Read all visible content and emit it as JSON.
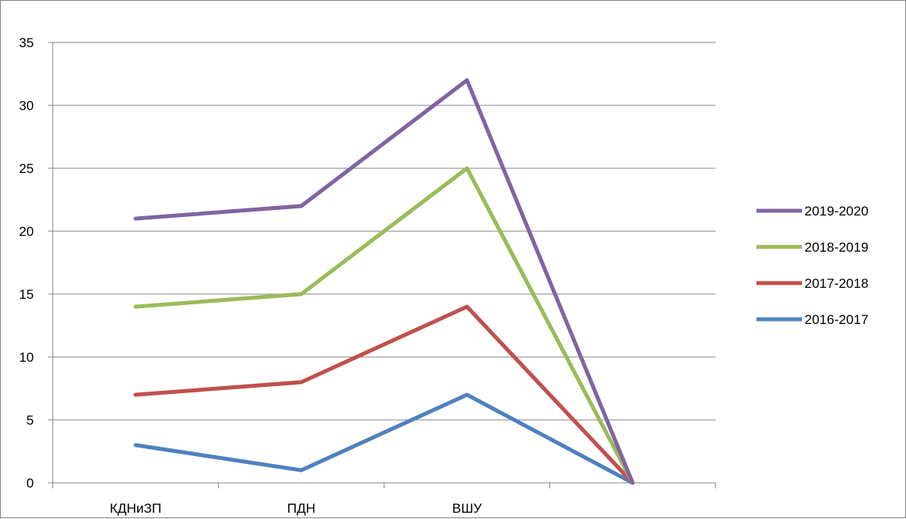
{
  "chart_data": {
    "type": "line",
    "title": "",
    "xlabel": "",
    "ylabel": "",
    "categories": [
      "КДНиЗП",
      "ПДН",
      "ВШУ",
      ""
    ],
    "ylim": [
      0,
      35
    ],
    "y_ticks": [
      0,
      5,
      10,
      15,
      20,
      25,
      30,
      35
    ],
    "grid": "horizontal",
    "legend_position": "right",
    "series": [
      {
        "name": "2019-2020",
        "color": "#8064A2",
        "values": [
          21,
          22,
          32,
          0
        ]
      },
      {
        "name": "2018-2019",
        "color": "#9BBB59",
        "values": [
          14,
          15,
          25,
          0
        ]
      },
      {
        "name": "2017-2018",
        "color": "#C0504D",
        "values": [
          7,
          8,
          14,
          0
        ]
      },
      {
        "name": "2016-2017",
        "color": "#4F81BD",
        "values": [
          3,
          1,
          7,
          0
        ]
      }
    ]
  }
}
